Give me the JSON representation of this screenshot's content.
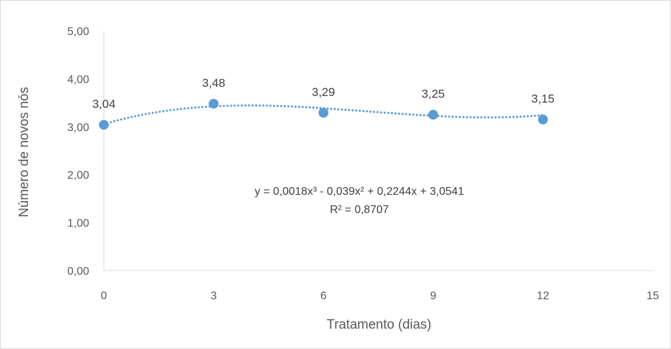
{
  "chart_data": {
    "type": "scatter",
    "title": "",
    "xlabel": "Tratamento (dias)",
    "ylabel": "Número de novos nós",
    "xlim": [
      0,
      15
    ],
    "ylim": [
      0,
      5
    ],
    "x_ticks": [
      "0",
      "3",
      "6",
      "9",
      "12",
      "15"
    ],
    "y_ticks": [
      "0,00",
      "1,00",
      "2,00",
      "3,00",
      "4,00",
      "5,00"
    ],
    "grid": false,
    "series": [
      {
        "x": [
          0,
          3,
          6,
          9,
          12
        ],
        "y": [
          3.04,
          3.48,
          3.29,
          3.25,
          3.15
        ],
        "labels": [
          "3,04",
          "3,48",
          "3,29",
          "3,25",
          "3,15"
        ],
        "color": "#5B9BD5"
      }
    ],
    "trendline": {
      "type": "polynomial",
      "order": 3,
      "coefficients": [
        0.0018,
        -0.039,
        0.2244,
        3.0541
      ],
      "style": "dotted",
      "color": "#5B9BD5",
      "equation_line1": "y = 0,0018x³ - 0,039x² + 0,2244x + 3,0541",
      "equation_line2": "R² = 0,8707"
    }
  }
}
